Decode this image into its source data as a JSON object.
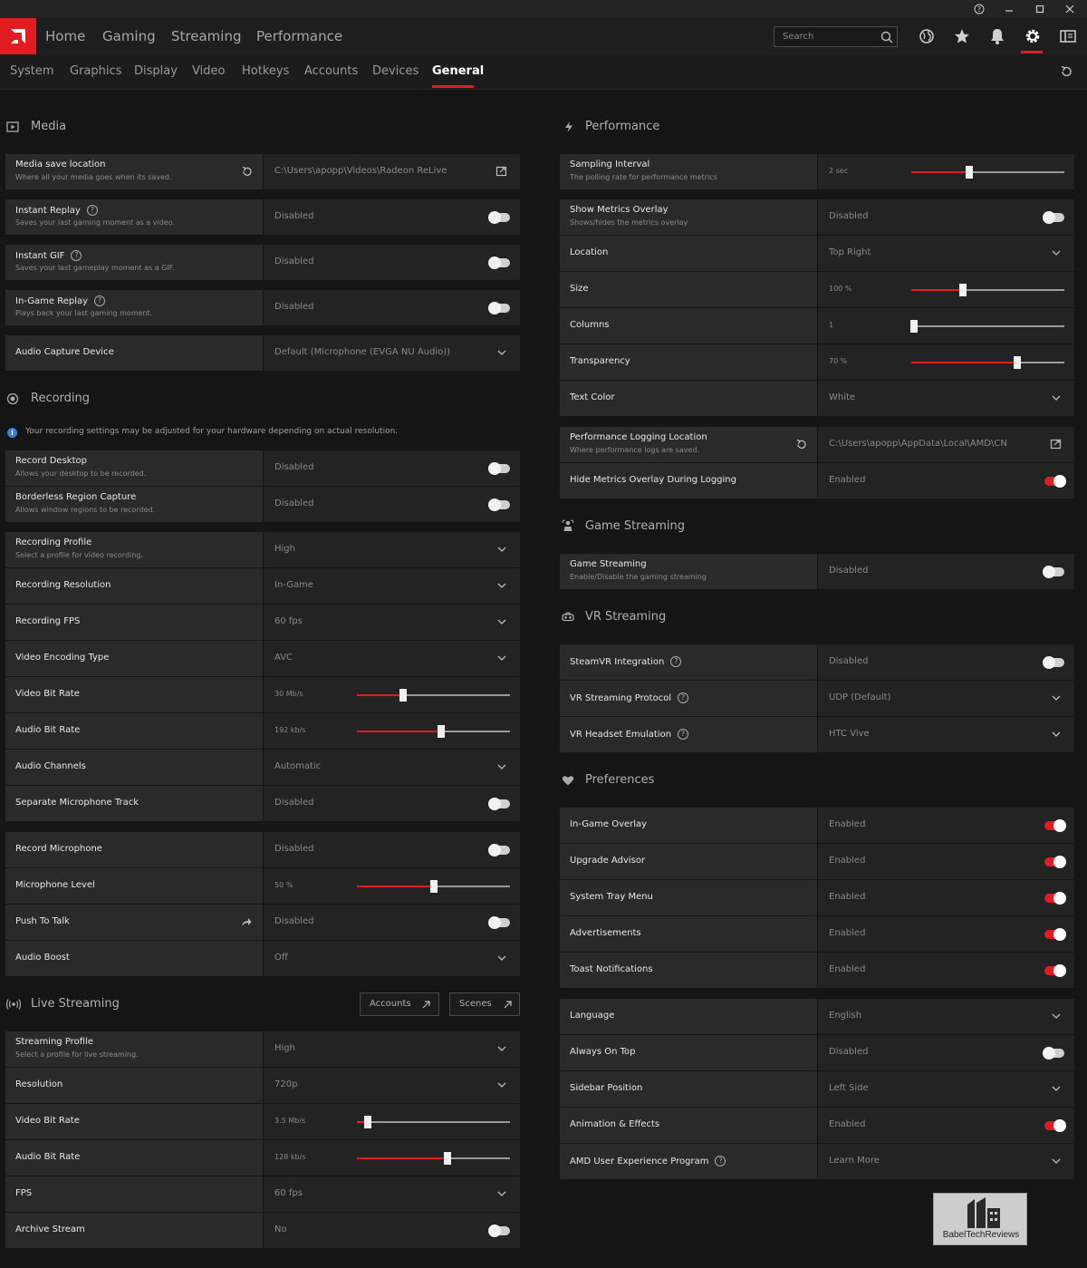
{
  "nav": {
    "main": [
      "Home",
      "Gaming",
      "Streaming",
      "Performance"
    ],
    "search_placeholder": "Search",
    "sub": [
      "System",
      "Graphics",
      "Display",
      "Video",
      "Hotkeys",
      "Accounts",
      "Devices",
      "General"
    ],
    "active_sub": "General"
  },
  "colors": {
    "accent": "#e31b23",
    "row_label_bg": "#2a2a2a",
    "row_value_bg": "#232323",
    "background": "#151515"
  },
  "media": {
    "title": "Media",
    "rows": [
      {
        "label": "Media save location",
        "sub": "Where all your media goes when its saved.",
        "value": "C:\\Users\\apopp\\Videos\\Radeon ReLive",
        "control": "folder",
        "reset": true
      },
      {
        "label": "Instant Replay",
        "sub": "Saves your last gaming moment as a video.",
        "value": "Disabled",
        "control": "toggle",
        "state": false,
        "help": true
      },
      {
        "label": "Instant GIF",
        "sub": "Saves your last gameplay moment as a GIF.",
        "value": "Disabled",
        "control": "toggle",
        "state": false,
        "help": true
      },
      {
        "label": "In-Game Replay",
        "sub": "Plays back your last gaming moment.",
        "value": "Disabled",
        "control": "toggle",
        "state": false,
        "help": true
      },
      {
        "label": "Audio Capture Device",
        "value": "Default (Microphone (EVGA NU Audio))",
        "control": "dropdown"
      }
    ]
  },
  "recording": {
    "title": "Recording",
    "notice": "Your recording settings may be adjusted for your hardware depending on actual resolution.",
    "rows": [
      {
        "label": "Record Desktop",
        "sub": "Allows your desktop to be recorded.",
        "value": "Disabled",
        "control": "toggle",
        "state": false
      },
      {
        "label": "Borderless Region Capture",
        "sub": "Allows window regions to be recorded.",
        "value": "Disabled",
        "control": "toggle",
        "state": false
      },
      {
        "label": "Recording Profile",
        "sub": "Select a profile for video recording.",
        "value": "High",
        "control": "dropdown"
      },
      {
        "label": "Recording Resolution",
        "value": "In-Game",
        "control": "dropdown"
      },
      {
        "label": "Recording FPS",
        "value": "60 fps",
        "control": "dropdown"
      },
      {
        "label": "Video Encoding Type",
        "value": "AVC",
        "control": "dropdown"
      },
      {
        "label": "Video Bit Rate",
        "value": "30 Mb/s",
        "control": "slider",
        "level": 0.3
      },
      {
        "label": "Audio Bit Rate",
        "value": "192 kb/s",
        "control": "slider",
        "level": 0.55
      },
      {
        "label": "Audio Channels",
        "value": "Automatic",
        "control": "dropdown"
      },
      {
        "label": "Separate Microphone Track",
        "value": "Disabled",
        "control": "toggle",
        "state": false
      },
      {
        "label": "Record Microphone",
        "value": "Disabled",
        "control": "toggle",
        "state": false
      },
      {
        "label": "Microphone Level",
        "value": "50 %",
        "control": "slider",
        "level": 0.5
      },
      {
        "label": "Push To Talk",
        "value": "Disabled",
        "control": "toggle",
        "state": false,
        "share": true
      },
      {
        "label": "Audio Boost",
        "value": "Off",
        "control": "dropdown"
      }
    ]
  },
  "live_streaming": {
    "title": "Live Streaming",
    "accounts_button": "Accounts",
    "scenes_button": "Scenes",
    "rows": [
      {
        "label": "Streaming Profile",
        "sub": "Select a profile for live streaming.",
        "value": "High",
        "control": "dropdown"
      },
      {
        "label": "Resolution",
        "value": "720p",
        "control": "dropdown"
      },
      {
        "label": "Video Bit Rate",
        "value": "3.5 Mb/s",
        "control": "slider",
        "level": 0.07
      },
      {
        "label": "Audio Bit Rate",
        "value": "128 kb/s",
        "control": "slider",
        "level": 0.59
      },
      {
        "label": "FPS",
        "value": "60 fps",
        "control": "dropdown"
      },
      {
        "label": "Archive Stream",
        "value": "No",
        "control": "toggle",
        "state": false
      }
    ]
  },
  "performance": {
    "title": "Performance",
    "rows": [
      {
        "label": "Sampling Interval",
        "sub": "The polling rate for performance metrics",
        "value": "2 sec",
        "control": "slider",
        "level": 0.38
      },
      {
        "label": "Show Metrics Overlay",
        "sub": "Shows/hides the metrics overlay",
        "value": "Disabled",
        "control": "toggle",
        "state": false
      },
      {
        "label": "Location",
        "value": "Top Right",
        "control": "dropdown"
      },
      {
        "label": "Size",
        "value": "100 %",
        "control": "slider",
        "level": 0.34
      },
      {
        "label": "Columns",
        "value": "1",
        "control": "slider",
        "level": 0.02
      },
      {
        "label": "Transparency",
        "value": "70 %",
        "control": "slider",
        "level": 0.69
      },
      {
        "label": "Text Color",
        "value": "White",
        "control": "dropdown"
      },
      {
        "label": "Performance Logging Location",
        "sub": "Where performance logs are saved.",
        "value": "C:\\Users\\apopp\\AppData\\Local\\AMD\\CN",
        "control": "folder",
        "reset": true
      },
      {
        "label": "Hide Metrics Overlay During Logging",
        "value": "Enabled",
        "control": "toggle",
        "state": true
      }
    ]
  },
  "game_streaming": {
    "title": "Game Streaming",
    "rows": [
      {
        "label": "Game Streaming",
        "sub": "Enable/Disable the gaming streaming",
        "value": "Disabled",
        "control": "toggle",
        "state": false
      }
    ]
  },
  "vr_streaming": {
    "title": "VR Streaming",
    "rows": [
      {
        "label": "SteamVR Integration",
        "value": "Disabled",
        "control": "toggle",
        "state": false,
        "help": true
      },
      {
        "label": "VR Streaming Protocol",
        "value": "UDP (Default)",
        "control": "dropdown",
        "help": true
      },
      {
        "label": "VR Headset Emulation",
        "value": "HTC Vive",
        "control": "dropdown",
        "help": true
      }
    ]
  },
  "preferences": {
    "title": "Preferences",
    "rows": [
      {
        "label": "In-Game Overlay",
        "value": "Enabled",
        "control": "toggle",
        "state": true
      },
      {
        "label": "Upgrade Advisor",
        "value": "Enabled",
        "control": "toggle",
        "state": true
      },
      {
        "label": "System Tray Menu",
        "value": "Enabled",
        "control": "toggle",
        "state": true
      },
      {
        "label": "Advertisements",
        "value": "Enabled",
        "control": "toggle",
        "state": true
      },
      {
        "label": "Toast Notifications",
        "value": "Enabled",
        "control": "toggle",
        "state": true
      },
      {
        "label": "Language",
        "value": "English",
        "control": "dropdown"
      },
      {
        "label": "Always On Top",
        "value": "Disabled",
        "control": "toggle",
        "state": false
      },
      {
        "label": "Sidebar Position",
        "value": "Left Side",
        "control": "dropdown"
      },
      {
        "label": "Animation & Effects",
        "value": "Enabled",
        "control": "toggle",
        "state": true
      },
      {
        "label": "AMD User Experience Program",
        "value": "Learn More",
        "control": "dropdown",
        "help": true
      }
    ]
  },
  "watermark": "BabelTechReviews"
}
